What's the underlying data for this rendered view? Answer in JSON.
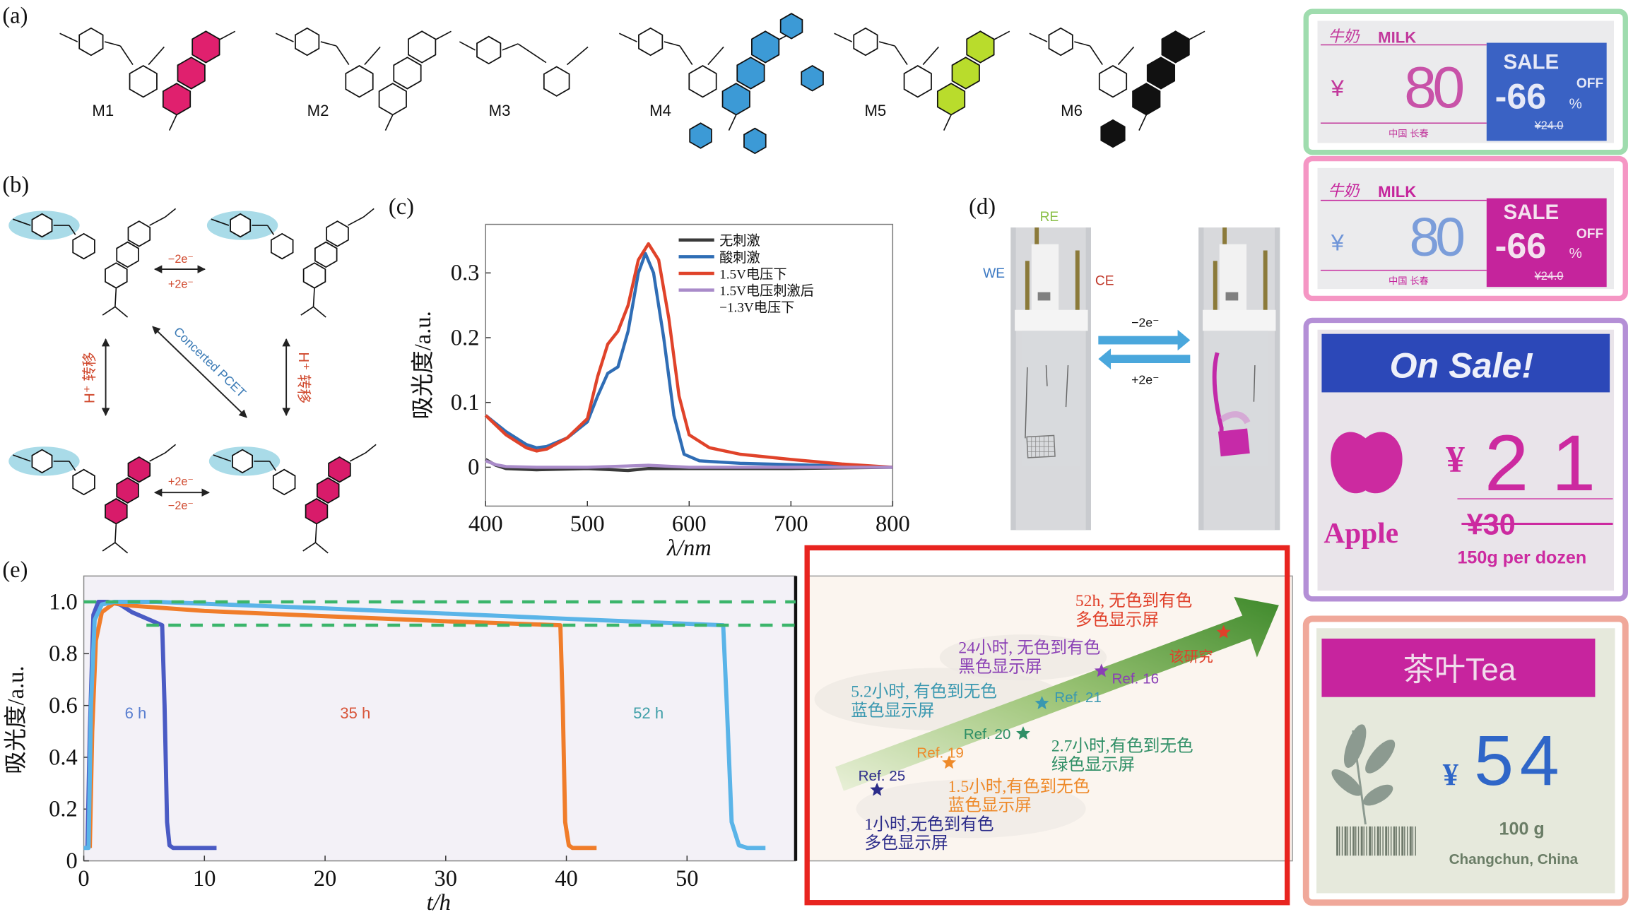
{
  "panel_labels": {
    "a": "(a)",
    "b": "(b)",
    "c": "(c)",
    "d": "(d)",
    "e": "(e)"
  },
  "panel_a": {
    "molecules": [
      {
        "label": "M1",
        "color": "#e0206e"
      },
      {
        "label": "M2",
        "color": "#ffffff"
      },
      {
        "label": "M3",
        "color": "#ffffff"
      },
      {
        "label": "M4",
        "color": "#3c9ad6"
      },
      {
        "label": "M5",
        "color": "#b9dc2c"
      },
      {
        "label": "M6",
        "color": "#111111"
      }
    ]
  },
  "panel_b": {
    "top_minus": "−2e⁻",
    "top_plus": "+2e⁻",
    "bottom_plus": "+2e⁻",
    "bottom_minus": "−2e⁻",
    "left_label": "H⁺ 转移",
    "right_label": "H⁺ 转移",
    "diagonal_label": "Concerted PCET",
    "highlight_color": "#a9dbe8",
    "dye_color": "#d81b6a"
  },
  "panel_d": {
    "re": "RE",
    "we": "WE",
    "ce": "CE",
    "forward": "−2e⁻",
    "backward": "+2e⁻",
    "arrow_color": "#4aa7dc"
  },
  "chart_data": [
    {
      "id": "c",
      "type": "line",
      "xlabel": "λ/nm",
      "ylabel": "吸光度/a.u.",
      "xlim": [
        400,
        800
      ],
      "ylim": [
        -0.06,
        0.375
      ],
      "xticks": [
        "400",
        "500",
        "600",
        "700",
        "800"
      ],
      "yticks": [
        "0",
        "0.1",
        "0.2",
        "0.3"
      ],
      "legend_position": "top-right",
      "series": [
        {
          "name": "无刺激",
          "color": "#3a3a3a",
          "x": [
            400,
            410,
            420,
            450,
            500,
            540,
            560,
            600,
            700,
            800
          ],
          "y": [
            0.012,
            0.003,
            -0.002,
            -0.004,
            -0.002,
            -0.005,
            -0.002,
            -0.002,
            -0.002,
            0.0
          ]
        },
        {
          "name": "酸刺激",
          "color": "#2f6db5",
          "x": [
            400,
            420,
            440,
            450,
            460,
            480,
            500,
            510,
            520,
            530,
            540,
            550,
            557,
            565,
            575,
            585,
            595,
            610,
            650,
            700,
            800
          ],
          "y": [
            0.08,
            0.055,
            0.035,
            0.03,
            0.032,
            0.045,
            0.07,
            0.11,
            0.145,
            0.155,
            0.21,
            0.3,
            0.33,
            0.3,
            0.2,
            0.08,
            0.02,
            0.01,
            0.006,
            0.004,
            0.0
          ]
        },
        {
          "name": "1.5V电压下",
          "color": "#e0432a",
          "x": [
            400,
            420,
            440,
            450,
            460,
            480,
            500,
            510,
            520,
            530,
            540,
            550,
            560,
            570,
            580,
            590,
            600,
            620,
            650,
            700,
            750,
            800
          ],
          "y": [
            0.08,
            0.05,
            0.03,
            0.025,
            0.028,
            0.045,
            0.075,
            0.14,
            0.19,
            0.21,
            0.25,
            0.32,
            0.345,
            0.32,
            0.23,
            0.11,
            0.05,
            0.03,
            0.02,
            0.012,
            0.005,
            0.0
          ]
        },
        {
          "name": "1.5V电压刺激后",
          "name_line2": "−1.3V电压下",
          "color": "#a98bc9",
          "x": [
            400,
            410,
            420,
            450,
            500,
            560,
            600,
            700,
            800
          ],
          "y": [
            0.01,
            0.004,
            0.001,
            0.0,
            0.0,
            0.003,
            0.0,
            0.0,
            0.0
          ]
        }
      ]
    },
    {
      "id": "e",
      "type": "line",
      "xlabel": "t/h",
      "ylabel": "吸光度/a.u.",
      "xlim": [
        0,
        59
      ],
      "ylim": [
        0,
        1.1
      ],
      "xticks": [
        "0",
        "10",
        "20",
        "30",
        "40",
        "50"
      ],
      "yticks": [
        "0",
        "0.2",
        "0.4",
        "0.6",
        "0.8",
        "1.0"
      ],
      "background": "#f3f1f7",
      "reference_lines": {
        "values": [
          1.0,
          0.91
        ],
        "color": "#3bb56b",
        "style": "dashed"
      },
      "series": [
        {
          "label": "6 h",
          "color": "#4a5bc4",
          "label_color": "#5a7fd0",
          "label_at": [
            4.3,
            0.55
          ],
          "x": [
            0.3,
            0.5,
            0.8,
            1.2,
            2,
            3,
            4,
            5,
            6.5,
            6.7,
            6.9,
            7.1,
            7.4,
            11
          ],
          "y": [
            0.05,
            0.5,
            0.95,
            1.0,
            1.0,
            0.99,
            0.96,
            0.94,
            0.91,
            0.6,
            0.15,
            0.06,
            0.05,
            0.05
          ]
        },
        {
          "label": "35 h",
          "color": "#f07d2a",
          "label_color": "#d8553a",
          "label_at": [
            22.5,
            0.55
          ],
          "x": [
            0.5,
            0.7,
            1.0,
            1.5,
            2.5,
            4,
            10,
            20,
            30,
            39.5,
            39.7,
            39.9,
            40.2,
            40.5,
            42.5
          ],
          "y": [
            0.05,
            0.5,
            0.85,
            0.96,
            0.995,
            0.985,
            0.965,
            0.945,
            0.925,
            0.91,
            0.6,
            0.15,
            0.06,
            0.05,
            0.05
          ]
        },
        {
          "label": "52 h",
          "color": "#5ab4e8",
          "label_color": "#3f9fa8",
          "label_at": [
            46.8,
            0.55
          ],
          "x": [
            0,
            0.4,
            0.6,
            0.9,
            1.5,
            2.5,
            6,
            20,
            30,
            40,
            53,
            53.3,
            53.7,
            54.3,
            55,
            56.5
          ],
          "y": [
            0.05,
            0.05,
            0.6,
            0.93,
            0.99,
            1.0,
            1.0,
            0.975,
            0.955,
            0.935,
            0.91,
            0.6,
            0.15,
            0.06,
            0.05,
            0.05
          ]
        }
      ]
    }
  ],
  "timeline": {
    "frame_color": "#e8241f",
    "arrow_color": "#4e8f2e",
    "entries": [
      {
        "ref": "Ref. 25",
        "text1": "1小时,无色到有色",
        "text2": "多色显示屏",
        "color": "#2c2c8a"
      },
      {
        "ref": "Ref. 19",
        "text1": "1.5小时,有色到无色",
        "text2": "蓝色显示屏",
        "color": "#ee8a2a"
      },
      {
        "ref": "Ref. 20",
        "text1": "2.7小时,有色到无色",
        "text2": "绿色显示屏",
        "color": "#2f8f66"
      },
      {
        "ref": "Ref. 21",
        "text1": "5.2小时, 有色到无色",
        "text2": "蓝色显示屏",
        "color": "#3a98b0"
      },
      {
        "ref": "Ref. 16",
        "text1": "24小时, 无色到有色",
        "text2": "黑色显示屏",
        "color": "#8a3fb5"
      },
      {
        "ref": "该研究",
        "text1": "52h, 无色到有色",
        "text2": "多色显示屏",
        "color": "#e0402a"
      }
    ]
  },
  "displays": {
    "milk_green": {
      "frame": "#9fdcae",
      "title_cn": "牛奶",
      "title_en": "MILK",
      "currency": "¥",
      "price": "80",
      "sale": "SALE",
      "discount": "-66",
      "percent": "%",
      "off": "OFF",
      "old_price": "¥24.0",
      "origin": "中国  长春",
      "digit_color": "#c2389c",
      "sale_bg": "#3a62c4"
    },
    "milk_pink": {
      "frame": "#f596c4",
      "title_cn": "牛奶",
      "title_en": "MILK",
      "currency": "¥",
      "price": "80",
      "sale": "SALE",
      "discount": "-66",
      "percent": "%",
      "off": "OFF",
      "old_price": "¥24.0",
      "origin": "中国  长春",
      "digit_color": "#6f95d8",
      "sale_bg": "#c5249c"
    },
    "apple": {
      "frame": "#b48fd6",
      "banner": "On Sale!",
      "currency": "¥",
      "price": "21",
      "old_price": "¥30",
      "name": "Apple",
      "note": "150g per dozen",
      "banner_bg": "#2c48b8",
      "ink": "#cc2aa0"
    },
    "tea": {
      "frame": "#f0a89a",
      "title": "茶叶Tea",
      "currency": "¥",
      "price": "54",
      "weight": "100 g",
      "origin": "Changchun, China",
      "banner_bg": "#c7249e",
      "price_color": "#2f66c8"
    }
  }
}
